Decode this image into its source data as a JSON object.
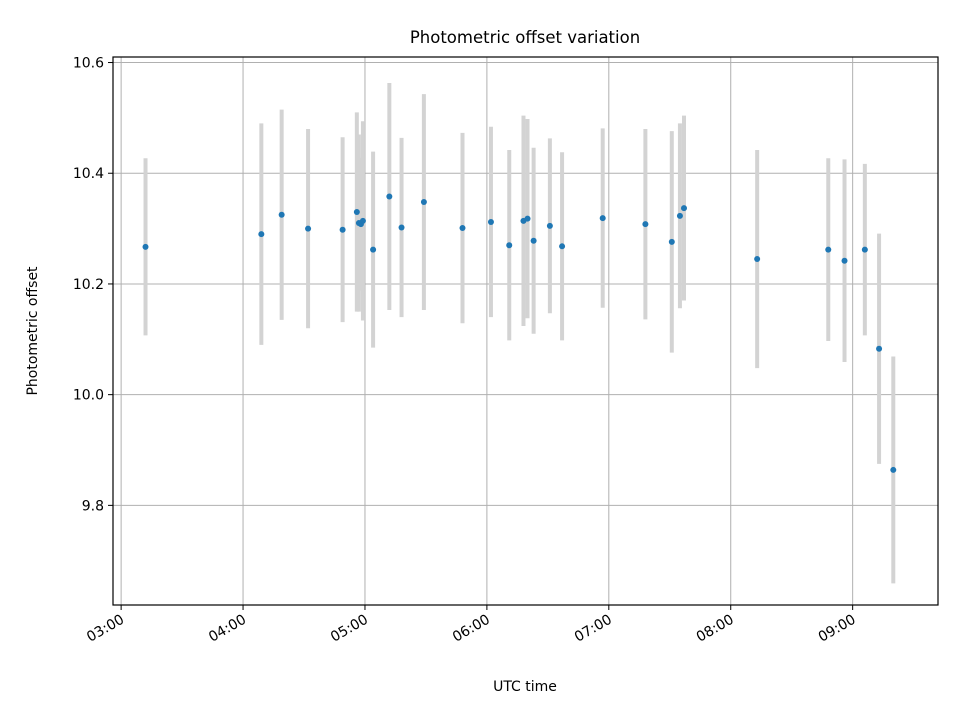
{
  "chart_data": {
    "type": "scatter",
    "title": "Photometric offset variation",
    "xlabel": "UTC time",
    "ylabel": "Photometric offset",
    "xlim": [
      "02:56",
      "09:42"
    ],
    "ylim": [
      9.62,
      10.61
    ],
    "x_ticks": [
      "03:00",
      "04:00",
      "05:00",
      "06:00",
      "07:00",
      "08:00",
      "09:00"
    ],
    "y_ticks": [
      9.8,
      10.0,
      10.2,
      10.4,
      10.6
    ],
    "grid": true,
    "legend": "none",
    "colors": {
      "point": "#1f77b4",
      "errorbar": "#d3d3d3",
      "grid": "#b0b0b0"
    },
    "points": [
      {
        "x": "03:12",
        "y": 10.267,
        "err": 0.16
      },
      {
        "x": "04:09",
        "y": 10.29,
        "err": 0.2
      },
      {
        "x": "04:19",
        "y": 10.325,
        "err": 0.19
      },
      {
        "x": "04:32",
        "y": 10.3,
        "err": 0.18
      },
      {
        "x": "04:49",
        "y": 10.298,
        "err": 0.167
      },
      {
        "x": "04:56",
        "y": 10.33,
        "err": 0.18
      },
      {
        "x": "04:57",
        "y": 10.31,
        "err": 0.16
      },
      {
        "x": "04:58",
        "y": 10.308,
        "err": 0.12
      },
      {
        "x": "04:59",
        "y": 10.314,
        "err": 0.18
      },
      {
        "x": "05:04",
        "y": 10.262,
        "err": 0.177
      },
      {
        "x": "05:12",
        "y": 10.358,
        "err": 0.205
      },
      {
        "x": "05:18",
        "y": 10.302,
        "err": 0.162
      },
      {
        "x": "05:29",
        "y": 10.348,
        "err": 0.195
      },
      {
        "x": "05:48",
        "y": 10.301,
        "err": 0.172
      },
      {
        "x": "06:02",
        "y": 10.312,
        "err": 0.172
      },
      {
        "x": "06:11",
        "y": 10.27,
        "err": 0.172
      },
      {
        "x": "06:18",
        "y": 10.314,
        "err": 0.19
      },
      {
        "x": "06:20",
        "y": 10.318,
        "err": 0.18
      },
      {
        "x": "06:23",
        "y": 10.278,
        "err": 0.168
      },
      {
        "x": "06:31",
        "y": 10.305,
        "err": 0.158
      },
      {
        "x": "06:37",
        "y": 10.268,
        "err": 0.17
      },
      {
        "x": "06:57",
        "y": 10.319,
        "err": 0.162
      },
      {
        "x": "07:18",
        "y": 10.308,
        "err": 0.172
      },
      {
        "x": "07:31",
        "y": 10.276,
        "err": 0.2
      },
      {
        "x": "07:35",
        "y": 10.323,
        "err": 0.167
      },
      {
        "x": "07:37",
        "y": 10.337,
        "err": 0.167
      },
      {
        "x": "08:13",
        "y": 10.245,
        "err": 0.197
      },
      {
        "x": "08:48",
        "y": 10.262,
        "err": 0.165
      },
      {
        "x": "08:56",
        "y": 10.242,
        "err": 0.183
      },
      {
        "x": "09:06",
        "y": 10.262,
        "err": 0.155
      },
      {
        "x": "09:13",
        "y": 10.083,
        "err": 0.208
      },
      {
        "x": "09:20",
        "y": 9.864,
        "err": 0.205
      }
    ]
  }
}
